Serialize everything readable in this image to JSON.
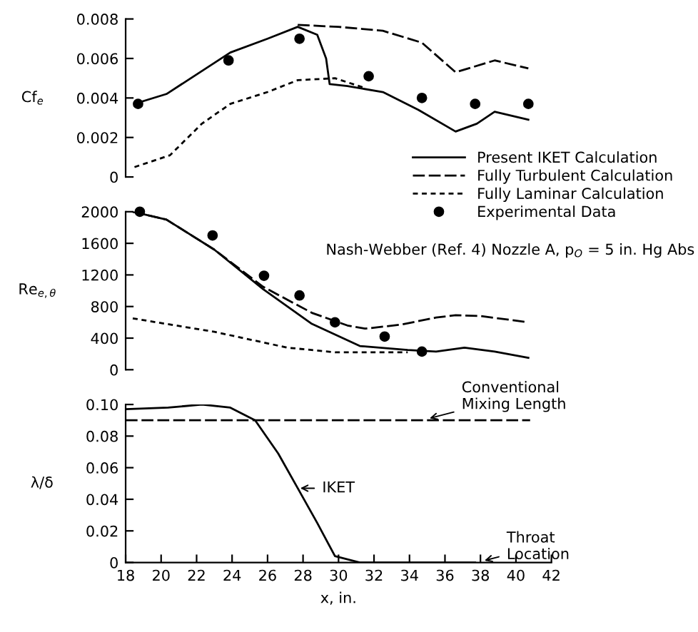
{
  "chart_data": [
    {
      "type": "line",
      "ylabel": "Cf$_{e}$",
      "xlim": [
        18,
        42
      ],
      "ylim": [
        0,
        0.008
      ],
      "yticks": [
        0,
        0.002,
        0.004,
        0.006,
        0.008
      ],
      "tick_labels": "y",
      "grid": false,
      "legend": false,
      "series": [
        {
          "type": "line",
          "line_style": "solid",
          "color": "#000000",
          "x": [
            18.5,
            20.3,
            23.9,
            26.0,
            27.7,
            28.8,
            29.3,
            29.5,
            30.5,
            32.5,
            34.5,
            36.6,
            37.8,
            38.8,
            40.7
          ],
          "values": [
            0.0037,
            0.0042,
            0.0063,
            0.007,
            0.0076,
            0.0072,
            0.006,
            0.0047,
            0.0046,
            0.0043,
            0.0034,
            0.0023,
            0.0027,
            0.0033,
            0.0029
          ]
        },
        {
          "type": "line",
          "line_style": "dashed",
          "color": "#000000",
          "x": [
            27.7,
            30.0,
            32.5,
            34.7,
            36.6,
            38.8,
            40.7
          ],
          "values": [
            0.0077,
            0.0076,
            0.0074,
            0.0068,
            0.0053,
            0.0059,
            0.0055
          ]
        },
        {
          "type": "line",
          "line_style": "dotted",
          "color": "#000000",
          "x": [
            18.5,
            20.5,
            22.3,
            23.9,
            26.0,
            27.7,
            29.8,
            31.5
          ],
          "values": [
            0.0005,
            0.0011,
            0.0027,
            0.0037,
            0.0043,
            0.0049,
            0.005,
            0.0045
          ]
        },
        {
          "type": "scatter",
          "marker": "circle",
          "color": "#000000",
          "x": [
            18.7,
            23.8,
            27.8,
            31.7,
            34.7,
            37.7,
            40.7
          ],
          "values": [
            0.0037,
            0.0059,
            0.007,
            0.0051,
            0.004,
            0.0037,
            0.0037
          ]
        }
      ]
    },
    {
      "type": "line",
      "ylabel": "Re$_{e,θ}$",
      "xlim": [
        18,
        42
      ],
      "ylim": [
        0,
        2000
      ],
      "yticks": [
        0,
        400,
        800,
        1200,
        1600,
        2000
      ],
      "tick_labels": "y",
      "grid": false,
      "legend": "top right",
      "annotations": [
        "Nash-Webber (Ref. 4) Nozzle A, p$_{O}$ = 5 in. Hg Abs"
      ],
      "series": [
        {
          "name": "Present IKET Calculation",
          "type": "line",
          "line_style": "solid",
          "color": "#000000",
          "x": [
            18.4,
            20.3,
            23.0,
            25.75,
            28.5,
            31.2,
            33.9,
            35.5,
            37.1,
            38.8,
            40.7
          ],
          "values": [
            2000,
            1900,
            1520,
            1020,
            580,
            300,
            250,
            230,
            280,
            230,
            150
          ]
        },
        {
          "name": "Fully Turbulent Calculation",
          "type": "line",
          "line_style": "dashed",
          "color": "#000000",
          "x": [
            18.4,
            20.3,
            23.0,
            25.75,
            28.5,
            30.5,
            31.5,
            33.5,
            35.5,
            36.6,
            38.0,
            40.7
          ],
          "values": [
            2000,
            1900,
            1520,
            1050,
            720,
            560,
            520,
            570,
            660,
            690,
            680,
            600
          ]
        },
        {
          "name": "Fully Laminar Calculation",
          "type": "line",
          "line_style": "dotted",
          "color": "#000000",
          "x": [
            18.4,
            23.0,
            27.1,
            29.8,
            33.9
          ],
          "values": [
            650,
            480,
            280,
            220,
            220
          ]
        },
        {
          "name": "Experimental Data",
          "type": "scatter",
          "marker": "circle",
          "color": "#000000",
          "x": [
            18.8,
            22.9,
            25.8,
            27.8,
            29.8,
            32.6,
            34.7
          ],
          "values": [
            2000,
            1700,
            1190,
            940,
            600,
            420,
            230
          ]
        }
      ]
    },
    {
      "type": "line",
      "ylabel": "λ/δ",
      "xlabel": "x, in.",
      "xlim": [
        18,
        42
      ],
      "xticks": [
        18,
        20,
        22,
        24,
        26,
        28,
        30,
        32,
        34,
        36,
        38,
        40,
        42
      ],
      "ylim": [
        0,
        0.1
      ],
      "yticks": [
        0,
        0.02,
        0.04,
        0.06,
        0.08,
        {
          "value": 0.1,
          "label": "0.10"
        }
      ],
      "grid": false,
      "legend": false,
      "annotations": [
        {
          "text": "Conventional\nMixing Length",
          "x": 34.7,
          "y": 0.09
        },
        {
          "text": "IKET",
          "x": 27.4,
          "y": 0.047
        },
        {
          "text": "Throat\nLocation",
          "x": 37.8,
          "y": 0.0
        }
      ],
      "series": [
        {
          "type": "line",
          "line_style": "solid",
          "color": "#000000",
          "x": [
            18.0,
            20.4,
            22.3,
            23.9,
            25.3,
            26.6,
            27.7,
            28.8,
            29.8,
            31.2,
            37.7
          ],
          "values": [
            0.097,
            0.098,
            0.1,
            0.098,
            0.09,
            0.069,
            0.047,
            0.025,
            0.004,
            0,
            0
          ]
        },
        {
          "type": "line",
          "line_style": "dashed",
          "color": "#000000",
          "x": [
            18.0,
            40.8
          ],
          "values": [
            0.09,
            0.09
          ]
        }
      ]
    }
  ]
}
